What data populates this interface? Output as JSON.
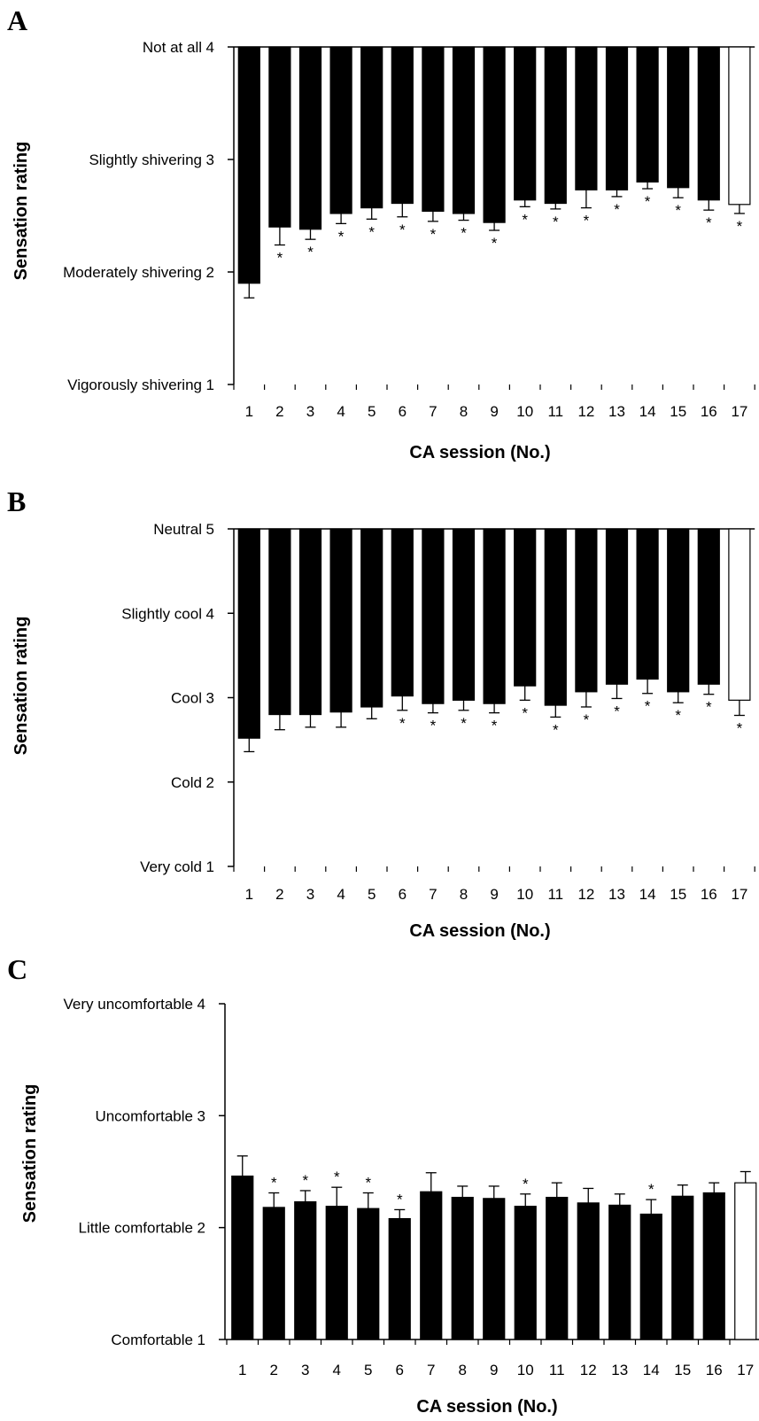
{
  "colors": {
    "bar_fill": "#000000",
    "last_bar_fill": "#ffffff",
    "stroke": "#000000"
  },
  "chart_data": [
    {
      "panel": "A",
      "type": "bar",
      "orientation": "hanging-from-top",
      "categories": [
        "1",
        "2",
        "3",
        "4",
        "5",
        "6",
        "7",
        "8",
        "9",
        "10",
        "11",
        "12",
        "13",
        "14",
        "15",
        "16",
        "17"
      ],
      "values": [
        1.9,
        2.4,
        2.38,
        2.52,
        2.57,
        2.61,
        2.54,
        2.52,
        2.44,
        2.64,
        2.61,
        2.73,
        2.73,
        2.8,
        2.75,
        2.64,
        2.6
      ],
      "errors": [
        0.13,
        0.16,
        0.09,
        0.09,
        0.1,
        0.12,
        0.09,
        0.06,
        0.07,
        0.06,
        0.05,
        0.16,
        0.06,
        0.06,
        0.09,
        0.09,
        0.08
      ],
      "significant": [
        false,
        true,
        true,
        true,
        true,
        true,
        true,
        true,
        true,
        true,
        true,
        true,
        true,
        true,
        true,
        true,
        true
      ],
      "yticks": [
        {
          "value": 4,
          "label": "Not at all",
          "num": "4"
        },
        {
          "value": 3,
          "label": "Slightly shivering",
          "num": "3"
        },
        {
          "value": 2,
          "label": "Moderately shivering",
          "num": "2"
        },
        {
          "value": 1,
          "label": "Vigorously shivering",
          "num": "1"
        }
      ],
      "ylim": [
        1,
        4
      ],
      "xlabel": "CA session (No.)",
      "ylabel": "Sensation rating",
      "marker": "*"
    },
    {
      "panel": "B",
      "type": "bar",
      "orientation": "hanging-from-top",
      "categories": [
        "1",
        "2",
        "3",
        "4",
        "5",
        "6",
        "7",
        "8",
        "9",
        "10",
        "11",
        "12",
        "13",
        "14",
        "15",
        "16",
        "17"
      ],
      "values": [
        2.52,
        2.8,
        2.8,
        2.83,
        2.89,
        3.02,
        2.93,
        2.97,
        2.93,
        3.14,
        2.91,
        3.07,
        3.16,
        3.22,
        3.07,
        3.16,
        2.97
      ],
      "errors": [
        0.16,
        0.18,
        0.15,
        0.18,
        0.14,
        0.17,
        0.11,
        0.12,
        0.11,
        0.17,
        0.14,
        0.18,
        0.17,
        0.17,
        0.13,
        0.12,
        0.18
      ],
      "significant": [
        false,
        false,
        false,
        false,
        false,
        true,
        true,
        true,
        true,
        true,
        true,
        true,
        true,
        true,
        true,
        true,
        true
      ],
      "yticks": [
        {
          "value": 5,
          "label": "Neutral",
          "num": "5"
        },
        {
          "value": 4,
          "label": "Slightly cool",
          "num": "4"
        },
        {
          "value": 3,
          "label": "Cool",
          "num": "3"
        },
        {
          "value": 2,
          "label": "Cold",
          "num": "2"
        },
        {
          "value": 1,
          "label": "Very cold",
          "num": "1"
        }
      ],
      "ylim": [
        1,
        5
      ],
      "xlabel": "CA session (No.)",
      "ylabel": "Sensation rating",
      "marker": "*"
    },
    {
      "panel": "C",
      "type": "bar",
      "orientation": "rising-from-bottom",
      "categories": [
        "1",
        "2",
        "3",
        "4",
        "5",
        "6",
        "7",
        "8",
        "9",
        "10",
        "11",
        "12",
        "13",
        "14",
        "15",
        "16",
        "17"
      ],
      "values": [
        2.46,
        2.18,
        2.23,
        2.19,
        2.17,
        2.08,
        2.32,
        2.27,
        2.26,
        2.19,
        2.27,
        2.22,
        2.2,
        2.12,
        2.28,
        2.31,
        2.4
      ],
      "errors": [
        0.18,
        0.13,
        0.1,
        0.17,
        0.14,
        0.08,
        0.17,
        0.1,
        0.11,
        0.11,
        0.13,
        0.13,
        0.1,
        0.13,
        0.1,
        0.09,
        0.1
      ],
      "significant": [
        false,
        true,
        true,
        true,
        true,
        true,
        false,
        false,
        false,
        true,
        false,
        false,
        false,
        true,
        false,
        false,
        false
      ],
      "yticks": [
        {
          "value": 4,
          "label": "Very uncomfortable",
          "num": "4"
        },
        {
          "value": 3,
          "label": "Uncomfortable",
          "num": "3"
        },
        {
          "value": 2,
          "label": "Little comfortable",
          "num": "2"
        },
        {
          "value": 1,
          "label": "Comfortable",
          "num": "1"
        }
      ],
      "ylim": [
        1,
        4
      ],
      "xlabel": "CA session (No.)",
      "ylabel": "Sensation rating",
      "marker": "*"
    }
  ]
}
